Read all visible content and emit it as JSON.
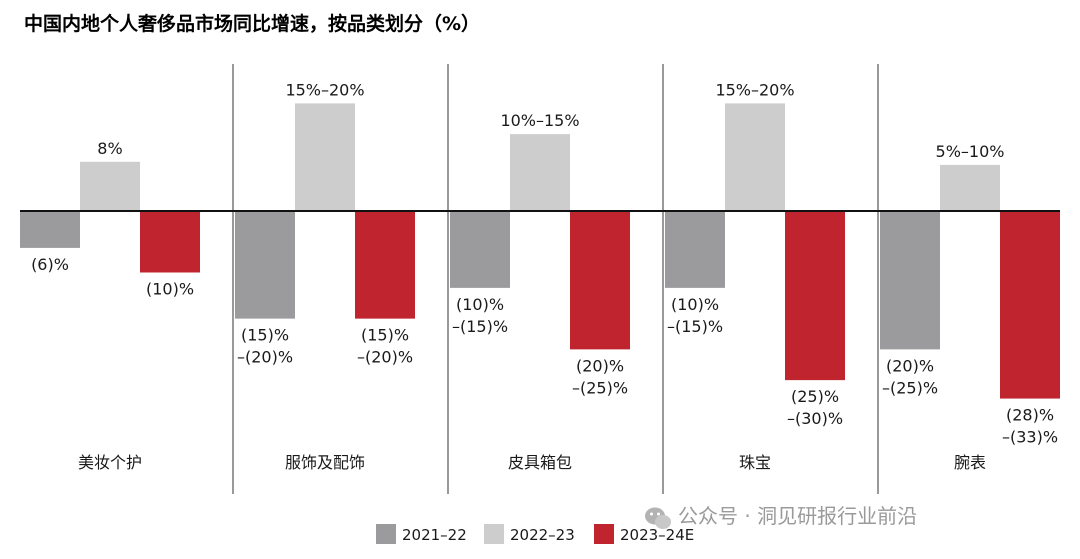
{
  "chart_data": {
    "type": "bar",
    "title": "中国内地个人奢侈品市场同比增速，按品类划分（%）",
    "categories": [
      "美妆个护",
      "服饰及配饰",
      "皮具箱包",
      "珠宝",
      "腕表"
    ],
    "series": [
      {
        "name": "2021–22",
        "color": "#9b9b9d",
        "values": [
          -6,
          -17.5,
          -12.5,
          -12.5,
          -22.5
        ],
        "labels": [
          [
            "(6)%"
          ],
          [
            "(15)%",
            "–(20)%"
          ],
          [
            "(10)%",
            "–(15)%"
          ],
          [
            "(10)%",
            "–(15)%"
          ],
          [
            "(20)%",
            "–(25)%"
          ]
        ]
      },
      {
        "name": "2022–23",
        "color": "#cdcdcd",
        "values": [
          8,
          17.5,
          12.5,
          17.5,
          7.5
        ],
        "labels": [
          [
            "8%"
          ],
          [
            "15%–20%"
          ],
          [
            "10%–15%"
          ],
          [
            "15%–20%"
          ],
          [
            "5%–10%"
          ]
        ]
      },
      {
        "name": "2023–24E",
        "color": "#c0242f",
        "values": [
          -10,
          -17.5,
          -22.5,
          -27.5,
          -30.5
        ],
        "labels": [
          [
            "(10)%"
          ],
          [
            "(15)%",
            "–(20)%"
          ],
          [
            "(20)%",
            "–(25)%"
          ],
          [
            "(25)%",
            "–(30)%"
          ],
          [
            "(28)%",
            "–(33)%"
          ]
        ]
      }
    ],
    "ylim": [
      -34,
      20
    ],
    "xlabel": "",
    "ylabel": ""
  },
  "watermark": "公众号 · 洞见研报行业前沿"
}
